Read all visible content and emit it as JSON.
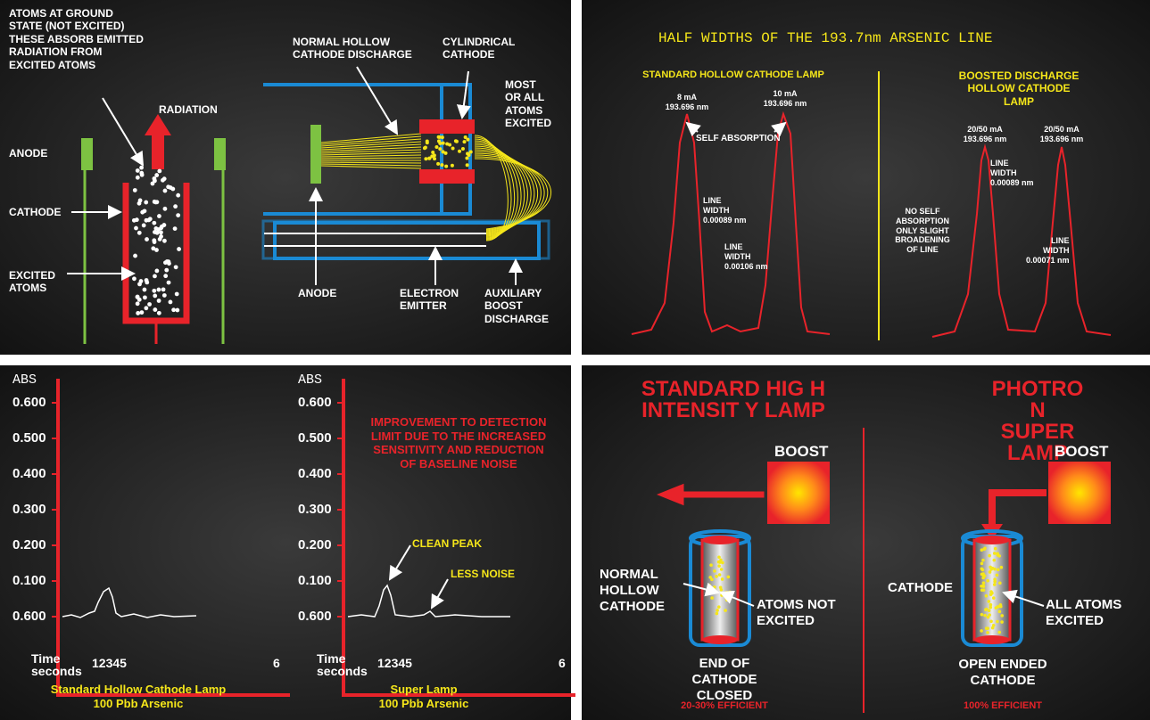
{
  "panel1": {
    "ground_state": "ATOMS AT GROUND\nSTATE (NOT EXCITED)\nTHESE ABSORB EMITTED\nRADIATION FROM\nEXCITED ATOMS",
    "radiation": "RADIATION",
    "anode": "ANODE",
    "cathode": "CATHODE",
    "excited_atoms": "EXCITED\nATOMS",
    "normal_discharge": "NORMAL HOLLOW\nCATHODE DISCHARGE",
    "cylindrical": "CYLINDRICAL\nCATHODE",
    "most_excited": "MOST\nOR ALL\nATOMS\nEXCITED",
    "anode2": "ANODE",
    "electron_emitter": "ELECTRON\nEMITTER",
    "auxiliary": "AUXILIARY\nBOOST\nDISCHARGE"
  },
  "panel2": {
    "title": "HALF WIDTHS OF THE 193.7nm ARSENIC LINE",
    "left_heading": "STANDARD HOLLOW CATHODE LAMP",
    "right_heading": "BOOSTED DISCHARGE\nHOLLOW CATHODE LAMP",
    "peak1": "8 mA\n193.696 nm",
    "peak2": "10 mA\n193.696 nm",
    "self_absorption": "SELF ABSORPTION",
    "width1": "LINE\nWIDTH\n0.00089 nm",
    "width2": "LINE\nWIDTH\n0.00106 nm",
    "peak3": "20/50 mA\n193.696 nm",
    "peak4": "20/50 mA\n193.696 nm",
    "width3": "LINE\nWIDTH\n0.00089 nm",
    "no_self": "NO SELF\nABSORPTION\nONLY SLIGHT\nBROADENING\nOF LINE",
    "width4": "LINE\nWIDTH\n0.00071 nm"
  },
  "panel3": {
    "charts": [
      {
        "axis_label": "ABS",
        "ticks": [
          "0.600",
          "0.500",
          "0.400",
          "0.300",
          "0.200",
          "0.100",
          "0.600"
        ],
        "time_label": "Time\nseconds",
        "x_ticks": [
          "12345",
          "6"
        ],
        "caption": "Standard Hollow Cathode Lamp\n100 Pbb Arsenic"
      },
      {
        "axis_label": "ABS",
        "ticks": [
          "0.600",
          "0.500",
          "0.400",
          "0.300",
          "0.200",
          "0.100",
          "0.600"
        ],
        "time_label": "Time\nseconds",
        "x_ticks": [
          "12345",
          "6"
        ],
        "caption": "Super Lamp\n100 Pbb Arsenic"
      }
    ],
    "improvement": "IMPROVEMENT TO DETECTION\nLIMIT DUE TO THE INCREASED\nSENSITIVITY AND REDUCTION\nOF BASELINE NOISE",
    "clean_peak": "CLEAN PEAK",
    "less_noise": "LESS NOISE"
  },
  "panel4": {
    "left_title": "STANDARD HIG H\nINTENSIT Y LAMP",
    "right_title": "PHOTRO N\nSUPER LAMP",
    "boost_left": "BOOST",
    "boost_right": "BOOST",
    "normal_cathode": "NORMAL\nHOLLOW\nCATHODE",
    "not_excited": "ATOMS NOT\nEXCITED",
    "end_closed": "END OF\nCATHODE\nCLOSED",
    "left_eff": "20-30% EFFICIENT",
    "cathode": "CATHODE",
    "all_excited": "ALL ATOMS\nEXCITED",
    "open_ended": "OPEN ENDED\nCATHODE",
    "right_eff": "100% EFFICIENT"
  }
}
